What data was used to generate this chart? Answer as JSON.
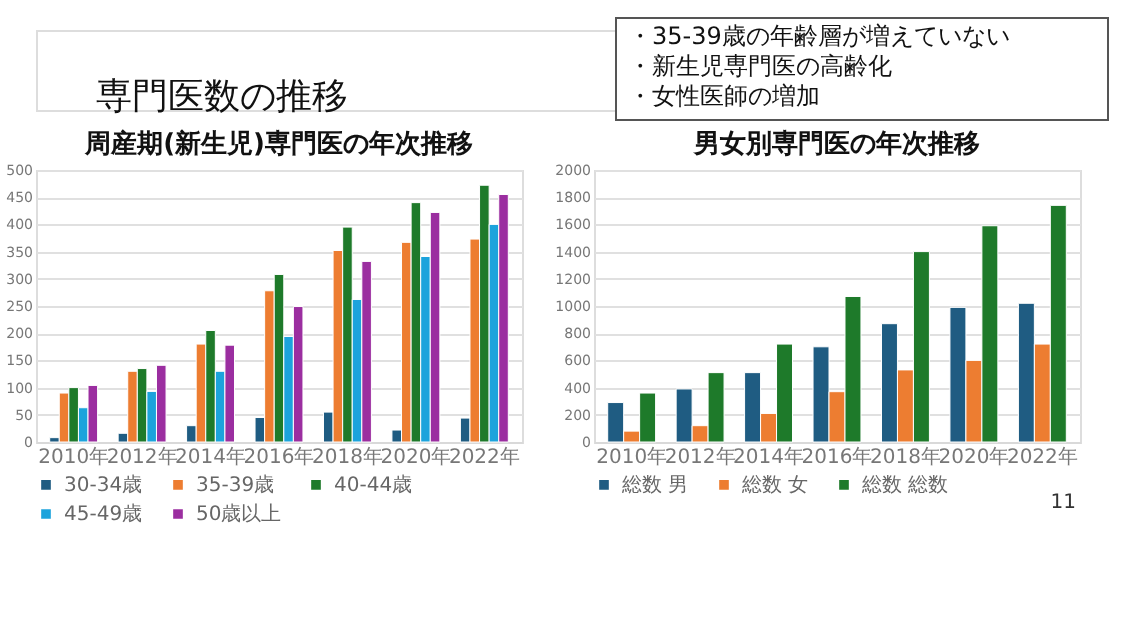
{
  "chart_data": [
    {
      "type": "bar",
      "title": "周産期(新生児)専門医の年次推移",
      "categories": [
        "2010年",
        "2012年",
        "2014年",
        "2016年",
        "2018年",
        "2020年",
        "2022年"
      ],
      "series": [
        {
          "name": "30-34歳",
          "color": "#1f5c82",
          "values": [
            8,
            16,
            30,
            45,
            55,
            22,
            44
          ]
        },
        {
          "name": "35-39歳",
          "color": "#ed7d31",
          "values": [
            90,
            130,
            180,
            278,
            352,
            367,
            373
          ]
        },
        {
          "name": "40-44歳",
          "color": "#1e7a2a",
          "values": [
            100,
            135,
            205,
            308,
            395,
            440,
            472
          ]
        },
        {
          "name": "45-49歳",
          "color": "#1ca3dc",
          "values": [
            63,
            93,
            130,
            194,
            262,
            341,
            400
          ]
        },
        {
          "name": "50歳以上",
          "color": "#9b2ea0",
          "values": [
            104,
            141,
            178,
            249,
            332,
            422,
            455
          ]
        }
      ],
      "ylim": [
        0,
        500
      ],
      "yticks": [
        0,
        50,
        100,
        150,
        200,
        250,
        300,
        350,
        400,
        450,
        500
      ],
      "grid": "y",
      "legend": "bottom",
      "annotations": [
        "専門医数の推移",
        "・35-39歳の年齢層が増えていない",
        "・新生児専門医の高齢化",
        "・女性医師の増加"
      ]
    },
    {
      "type": "bar",
      "title": "男女別専門医の年次推移",
      "categories": [
        "2010年",
        "2012年",
        "2014年",
        "2016年",
        "2018年",
        "2020年",
        "2022年"
      ],
      "series": [
        {
          "name": "総数 男",
          "color": "#1f5c82",
          "values": [
            290,
            390,
            510,
            700,
            870,
            990,
            1020
          ]
        },
        {
          "name": "総数 女",
          "color": "#ed7d31",
          "values": [
            80,
            120,
            210,
            370,
            530,
            600,
            720
          ]
        },
        {
          "name": "総数 総数",
          "color": "#1e7a2a",
          "values": [
            360,
            510,
            720,
            1070,
            1400,
            1590,
            1740
          ]
        }
      ],
      "ylim": [
        0,
        2000
      ],
      "yticks": [
        0,
        200,
        400,
        600,
        800,
        1000,
        1200,
        1400,
        1600,
        1800,
        2000
      ],
      "grid": "y",
      "legend": "bottom",
      "annotations": [
        "11"
      ]
    }
  ]
}
